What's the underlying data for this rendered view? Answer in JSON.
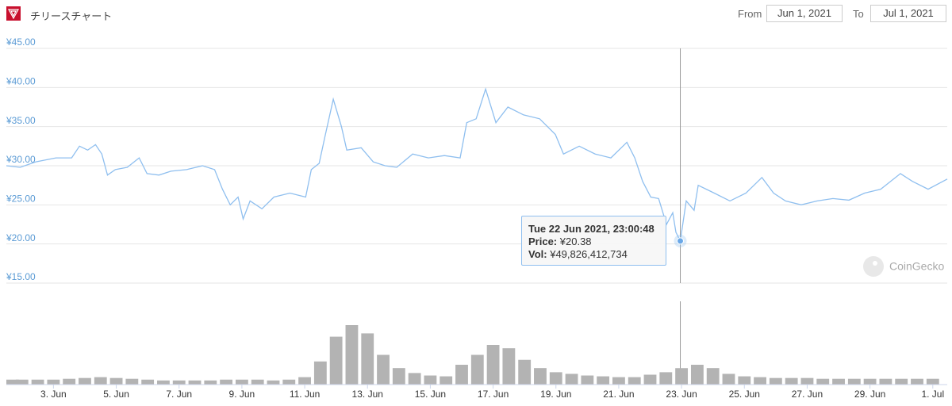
{
  "header": {
    "title": "チリースチャート",
    "from_label": "From",
    "from": "Jun 1, 2021",
    "to_label": "To",
    "to": "Jul 1, 2021"
  },
  "watermark": "CoinGecko",
  "tooltip": {
    "time": "Tue 22 Jun 2021, 23:00:48",
    "price_label": "Price:",
    "price": "¥20.38",
    "vol_label": "Vol:",
    "vol": "¥49,826,412,734"
  },
  "chart_data": [
    {
      "type": "line",
      "color": "#8fbfef",
      "x": [
        1.5,
        1.94,
        2.44,
        3.08,
        3.58,
        3.83,
        4.09,
        4.34,
        4.54,
        4.72,
        4.97,
        5.35,
        5.73,
        5.98,
        6.36,
        6.74,
        7.24,
        7.75,
        8.13,
        8.38,
        8.63,
        8.88,
        9.04,
        9.26,
        9.64,
        10.02,
        10.53,
        11.03,
        11.21,
        11.46,
        11.66,
        11.91,
        12.17,
        12.34,
        12.8,
        13.18,
        13.56,
        13.93,
        14.44,
        14.94,
        15.45,
        15.95,
        16.16,
        16.46,
        16.76,
        17.09,
        17.47,
        17.97,
        18.48,
        18.98,
        19.24,
        19.74,
        20.25,
        20.75,
        21.26,
        21.51,
        21.76,
        22.02,
        22.27,
        22.52,
        22.72,
        22.82,
        22.96,
        23.15,
        23.4,
        23.53,
        24.04,
        24.54,
        25.05,
        25.56,
        25.93,
        26.31,
        26.81,
        27.32,
        27.82,
        28.33,
        28.83,
        29.34,
        29.97,
        30.35,
        30.85,
        31.46
      ],
      "values": [
        30.0,
        29.8,
        30.5,
        31.0,
        31.0,
        32.5,
        32.0,
        32.7,
        31.5,
        28.8,
        29.5,
        29.8,
        31.0,
        29.0,
        28.8,
        29.3,
        29.5,
        30.0,
        29.5,
        27.0,
        25.0,
        26.0,
        23.2,
        25.5,
        24.5,
        26.0,
        26.5,
        26.0,
        29.5,
        30.3,
        34.0,
        38.5,
        35.0,
        32.0,
        32.3,
        30.5,
        30.0,
        29.8,
        31.5,
        31.0,
        31.3,
        31.0,
        35.5,
        36.0,
        39.8,
        35.5,
        37.5,
        36.5,
        36.0,
        34.0,
        31.5,
        32.5,
        31.5,
        31.0,
        33.0,
        31.0,
        28.0,
        26.0,
        25.8,
        22.5,
        24.0,
        21.5,
        20.38,
        25.5,
        24.3,
        27.5,
        26.5,
        25.5,
        26.5,
        28.5,
        26.5,
        25.5,
        25.0,
        25.5,
        25.8,
        25.6,
        26.5,
        27.0,
        29.0,
        28.0,
        27.0,
        28.3
      ],
      "xlim": [
        1.5,
        31.46
      ],
      "ylim": [
        15,
        45
      ],
      "yticks": [
        {
          "value": 15,
          "label": "¥15.00"
        },
        {
          "value": 20,
          "label": "¥20.00"
        },
        {
          "value": 25,
          "label": "¥25.00"
        },
        {
          "value": 30,
          "label": "¥30.00"
        },
        {
          "value": 35,
          "label": "¥35.00"
        },
        {
          "value": 40,
          "label": "¥40.00"
        },
        {
          "value": 45,
          "label": "¥45.00"
        }
      ],
      "grid": true
    },
    {
      "type": "bar",
      "color": "#b3b3b3",
      "x": [
        1.5,
        2,
        2.5,
        3,
        3.5,
        4,
        4.5,
        5,
        5.5,
        6,
        6.5,
        7,
        7.5,
        8,
        8.5,
        9,
        9.5,
        10,
        10.5,
        11,
        11.5,
        12,
        12.5,
        13,
        13.5,
        14,
        14.5,
        15,
        15.5,
        16,
        16.5,
        17,
        17.5,
        18,
        18.5,
        19,
        19.5,
        20,
        20.5,
        21,
        21.5,
        22,
        22.5,
        23,
        23.5,
        24,
        24.5,
        25,
        25.5,
        26,
        26.5,
        27,
        27.5,
        28,
        28.5,
        29,
        29.5,
        30,
        30.5,
        31
      ],
      "values": [
        15000000000,
        15000000000,
        15000000000,
        15000000000,
        17500000000,
        20000000000,
        22500000000,
        20000000000,
        17500000000,
        15000000000,
        12500000000,
        12500000000,
        12500000000,
        12500000000,
        15000000000,
        15000000000,
        15000000000,
        12500000000,
        15000000000,
        22500000000,
        70000000000,
        145000000000,
        180000000000,
        155000000000,
        90000000000,
        50000000000,
        35000000000,
        27500000000,
        25000000000,
        60000000000,
        90000000000,
        120000000000,
        110000000000,
        75000000000,
        50000000000,
        37500000000,
        32500000000,
        27500000000,
        25000000000,
        22500000000,
        22500000000,
        30000000000,
        37500000000,
        49826412734,
        60000000000,
        50000000000,
        32500000000,
        25000000000,
        22500000000,
        20000000000,
        20000000000,
        20000000000,
        17500000000,
        17500000000,
        17500000000,
        17500000000,
        17500000000,
        17500000000,
        17500000000,
        17500000000
      ],
      "xlim": [
        1.5,
        31.46
      ],
      "xticks": [
        {
          "value": 3,
          "label": "3. Jun"
        },
        {
          "value": 5,
          "label": "5. Jun"
        },
        {
          "value": 7,
          "label": "7. Jun"
        },
        {
          "value": 9,
          "label": "9. Jun"
        },
        {
          "value": 11,
          "label": "11. Jun"
        },
        {
          "value": 13,
          "label": "13. Jun"
        },
        {
          "value": 15,
          "label": "15. Jun"
        },
        {
          "value": 17,
          "label": "17. Jun"
        },
        {
          "value": 19,
          "label": "19. Jun"
        },
        {
          "value": 21,
          "label": "21. Jun"
        },
        {
          "value": 23,
          "label": "23. Jun"
        },
        {
          "value": 25,
          "label": "25. Jun"
        },
        {
          "value": 27,
          "label": "27. Jun"
        },
        {
          "value": 29,
          "label": "29. Jun"
        },
        {
          "value": 31,
          "label": "1. Jul"
        }
      ]
    }
  ]
}
